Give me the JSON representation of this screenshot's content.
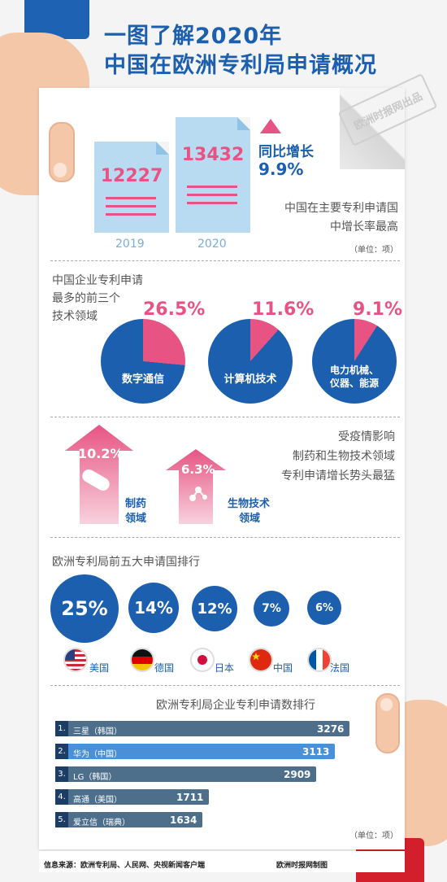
{
  "title": {
    "line1": "一图了解2020年",
    "line2": "中国在欧洲专利局申请概况"
  },
  "stamp": "欧洲时报网出品",
  "applications": [
    {
      "year": "2019",
      "value": "12227"
    },
    {
      "year": "2020",
      "value": "13432"
    }
  ],
  "growth": {
    "label": "同比增长",
    "value": "9.9%"
  },
  "growth_note": {
    "line1": "中国在主要专利申请国",
    "line2": "中增长率最高"
  },
  "unit": "（单位：项）",
  "tech_fields": {
    "heading": {
      "line1": "中国企业专利申请",
      "line2": "最多的前三个",
      "line3": "技术领域"
    },
    "items": [
      {
        "pct": "26.5%",
        "share": 0.265,
        "label": "数字通信"
      },
      {
        "pct": "11.6%",
        "share": 0.116,
        "label": "计算机技术"
      },
      {
        "pct": "9.1%",
        "share": 0.091,
        "label": "电力机械、仪器、能源",
        "label1": "电力机械、",
        "label2": "仪器、能源"
      }
    ]
  },
  "pandemic": {
    "note": {
      "line1": "受疫情影响",
      "line2": "制药和生物技术领域",
      "line3": "专利申请增长势头最猛"
    },
    "items": [
      {
        "pct": "10.2%",
        "label1": "制药",
        "label2": "领域"
      },
      {
        "pct": "6.3%",
        "label1": "生物技术",
        "label2": "领域"
      }
    ]
  },
  "top5_countries": {
    "heading": "欧洲专利局前五大申请国排行",
    "items": [
      {
        "pct": "25%",
        "name": "美国",
        "flag": "us-flag"
      },
      {
        "pct": "14%",
        "name": "德国",
        "flag": "de-flag"
      },
      {
        "pct": "12%",
        "name": "日本",
        "flag": "jp-flag"
      },
      {
        "pct": "7%",
        "name": "中国",
        "flag": "cn-flag"
      },
      {
        "pct": "6%",
        "name": "法国",
        "flag": "fr-flag"
      }
    ]
  },
  "company_ranking": {
    "heading": "欧洲专利局企业专利申请数排行",
    "items": [
      {
        "rank": "1.",
        "name": "三星（韩国）",
        "value": "3276"
      },
      {
        "rank": "2.",
        "name": "华为（中国）",
        "value": "3113"
      },
      {
        "rank": "3.",
        "name": "LG（韩国）",
        "value": "2909"
      },
      {
        "rank": "4.",
        "name": "高通（美国）",
        "value": "1711"
      },
      {
        "rank": "5.",
        "name": "爱立信（瑞典）",
        "value": "1634"
      }
    ],
    "unit": "（单位：项）"
  },
  "footer": {
    "source": "信息来源：欧洲专利局、人民网、央视新闻客户端",
    "credit": "欧洲时报网制图"
  },
  "colors": {
    "blue": "#1b5fae",
    "pink": "#e75483",
    "light_blue": "#b9dbf2",
    "bar": "#4d6f8c",
    "bar_highlight": "#4a90d9",
    "cuff_red": "#d21f2b"
  }
}
